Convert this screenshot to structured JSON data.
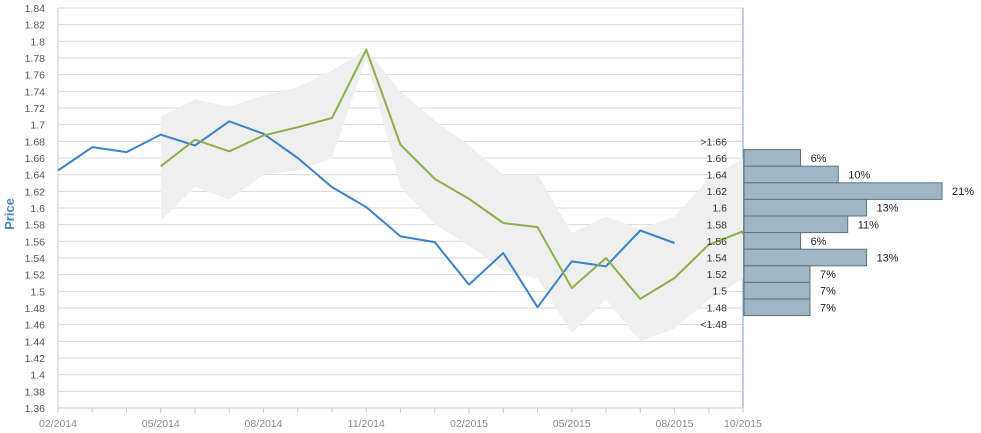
{
  "chart_data": {
    "type": "line",
    "ylabel": "Price",
    "xlabel": "",
    "ylim": [
      1.36,
      1.84
    ],
    "yticks": [
      "1.36",
      "1.38",
      "1.4",
      "1.42",
      "1.44",
      "1.46",
      "1.48",
      "1.5",
      "1.52",
      "1.54",
      "1.56",
      "1.58",
      "1.6",
      "1.62",
      "1.64",
      "1.66",
      "1.68",
      "1.7",
      "1.72",
      "1.74",
      "1.76",
      "1.78",
      "1.8",
      "1.82",
      "1.84"
    ],
    "xticks": [
      "02/2014",
      "05/2014",
      "08/2014",
      "11/2014",
      "02/2015",
      "05/2015",
      "08/2015",
      "10/2015"
    ],
    "x_months": [
      "02/2014",
      "03/2014",
      "04/2014",
      "05/2014",
      "06/2014",
      "07/2014",
      "08/2014",
      "09/2014",
      "10/2014",
      "11/2014",
      "12/2014",
      "01/2015",
      "02/2015",
      "03/2015",
      "04/2015",
      "05/2015",
      "06/2015",
      "07/2015",
      "08/2015",
      "09/2015",
      "10/2015"
    ],
    "grid": true,
    "series": [
      {
        "color": "#3a83cf",
        "points": [
          [
            "02/2014",
            1.645
          ],
          [
            "03/2014",
            1.673
          ],
          [
            "04/2014",
            1.667
          ],
          [
            "05/2014",
            1.688
          ],
          [
            "06/2014",
            1.675
          ],
          [
            "07/2014",
            1.704
          ],
          [
            "08/2014",
            1.689
          ],
          [
            "09/2014",
            1.66
          ],
          [
            "10/2014",
            1.625
          ],
          [
            "11/2014",
            1.601
          ],
          [
            "12/2014",
            1.566
          ],
          [
            "01/2015",
            1.559
          ],
          [
            "02/2015",
            1.508
          ],
          [
            "03/2015",
            1.546
          ],
          [
            "04/2015",
            1.481
          ],
          [
            "05/2015",
            1.536
          ],
          [
            "06/2015",
            1.53
          ],
          [
            "07/2015",
            1.573
          ],
          [
            "08/2015",
            1.558
          ]
        ]
      },
      {
        "color": "#8cb04a",
        "points": [
          [
            "05/2014",
            1.65
          ],
          [
            "06/2014",
            1.682
          ],
          [
            "07/2014",
            1.668
          ],
          [
            "08/2014",
            1.687
          ],
          [
            "09/2014",
            1.697
          ],
          [
            "10/2014",
            1.708
          ],
          [
            "11/2014",
            1.79
          ],
          [
            "12/2014",
            1.676
          ],
          [
            "01/2015",
            1.635
          ],
          [
            "02/2015",
            1.611
          ],
          [
            "03/2015",
            1.582
          ],
          [
            "04/2015",
            1.577
          ],
          [
            "05/2015",
            1.504
          ],
          [
            "06/2015",
            1.54
          ],
          [
            "07/2015",
            1.491
          ],
          [
            "08/2015",
            1.516
          ],
          [
            "09/2015",
            1.556
          ],
          [
            "10/2015",
            1.572
          ],
          [
            "10/2015+",
            1.568
          ]
        ]
      }
    ],
    "band": {
      "color": "#efefef",
      "upper": [
        [
          "05/2014",
          1.71
        ],
        [
          "06/2014",
          1.73
        ],
        [
          "07/2014",
          1.722
        ],
        [
          "08/2014",
          1.735
        ],
        [
          "09/2014",
          1.745
        ],
        [
          "10/2014",
          1.765
        ],
        [
          "11/2014",
          1.79
        ],
        [
          "12/2014",
          1.74
        ],
        [
          "01/2015",
          1.705
        ],
        [
          "02/2015",
          1.675
        ],
        [
          "03/2015",
          1.64
        ],
        [
          "04/2015",
          1.64
        ],
        [
          "05/2015",
          1.57
        ],
        [
          "06/2015",
          1.59
        ],
        [
          "07/2015",
          1.575
        ],
        [
          "08/2015",
          1.59
        ],
        [
          "09/2015",
          1.635
        ],
        [
          "10/2015",
          1.66
        ]
      ],
      "lower": [
        [
          "05/2014",
          1.585
        ],
        [
          "06/2014",
          1.625
        ],
        [
          "07/2014",
          1.61
        ],
        [
          "08/2014",
          1.64
        ],
        [
          "09/2014",
          1.645
        ],
        [
          "10/2014",
          1.66
        ],
        [
          "11/2014",
          1.78
        ],
        [
          "12/2014",
          1.625
        ],
        [
          "01/2015",
          1.58
        ],
        [
          "02/2015",
          1.555
        ],
        [
          "03/2015",
          1.525
        ],
        [
          "04/2015",
          1.515
        ],
        [
          "05/2015",
          1.45
        ],
        [
          "06/2015",
          1.49
        ],
        [
          "07/2015",
          1.44
        ],
        [
          "08/2015",
          1.455
        ],
        [
          "09/2015",
          1.49
        ],
        [
          "10/2015",
          1.515
        ]
      ]
    },
    "distribution": {
      "color": "#9fb5c2",
      "bins": [
        {
          "label": ">1.66",
          "value": 0,
          "text": ""
        },
        {
          "label": "1.66",
          "value": 6,
          "text": "6%"
        },
        {
          "label": "1.64",
          "value": 10,
          "text": "10%"
        },
        {
          "label": "1.62",
          "value": 21,
          "text": "21%"
        },
        {
          "label": "1.6",
          "value": 13,
          "text": "13%"
        },
        {
          "label": "1.58",
          "value": 11,
          "text": "11%"
        },
        {
          "label": "1.56",
          "value": 6,
          "text": "6%"
        },
        {
          "label": "1.54",
          "value": 13,
          "text": "13%"
        },
        {
          "label": "1.52",
          "value": 7,
          "text": "7%"
        },
        {
          "label": "1.5",
          "value": 7,
          "text": "7%"
        },
        {
          "label": "1.48",
          "value": 7,
          "text": "7%"
        },
        {
          "label": "<1.48",
          "value": 0,
          "text": ""
        }
      ]
    }
  }
}
